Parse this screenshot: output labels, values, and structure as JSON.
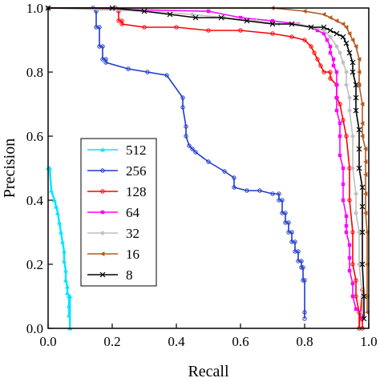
{
  "chart_data": {
    "type": "line",
    "xlabel": "Recall",
    "ylabel": "Precision",
    "xlim": [
      0.0,
      1.0
    ],
    "ylim": [
      0.0,
      1.0
    ],
    "xticks": [
      "0.0",
      "0.2",
      "0.4",
      "0.6",
      "0.8",
      "1.0"
    ],
    "yticks": [
      "0.0",
      "0.2",
      "0.4",
      "0.6",
      "0.8",
      "1.0"
    ],
    "legend_position": "left-center",
    "grid": false,
    "series": [
      {
        "name": "512",
        "color": "#00e5ff",
        "marker": "triangle-up",
        "points": [
          [
            0.0,
            0.5
          ],
          [
            0.005,
            0.5
          ],
          [
            0.01,
            0.43
          ],
          [
            0.02,
            0.4
          ],
          [
            0.025,
            0.38
          ],
          [
            0.03,
            0.36
          ],
          [
            0.035,
            0.33
          ],
          [
            0.04,
            0.3
          ],
          [
            0.045,
            0.27
          ],
          [
            0.05,
            0.24
          ],
          [
            0.05,
            0.21
          ],
          [
            0.055,
            0.18
          ],
          [
            0.055,
            0.15
          ],
          [
            0.06,
            0.13
          ],
          [
            0.06,
            0.11
          ],
          [
            0.065,
            0.1
          ],
          [
            0.065,
            0.07
          ],
          [
            0.065,
            0.04
          ],
          [
            0.068,
            0.1
          ],
          [
            0.068,
            0.0
          ]
        ]
      },
      {
        "name": "256",
        "color": "#1f3bcc",
        "marker": "circle",
        "points": [
          [
            0.0,
            1.0
          ],
          [
            0.14,
            1.0
          ],
          [
            0.15,
            0.99
          ],
          [
            0.15,
            0.94
          ],
          [
            0.16,
            0.94
          ],
          [
            0.16,
            0.88
          ],
          [
            0.17,
            0.88
          ],
          [
            0.17,
            0.84
          ],
          [
            0.18,
            0.84
          ],
          [
            0.18,
            0.83
          ],
          [
            0.25,
            0.81
          ],
          [
            0.31,
            0.8
          ],
          [
            0.37,
            0.79
          ],
          [
            0.42,
            0.72
          ],
          [
            0.42,
            0.69
          ],
          [
            0.43,
            0.63
          ],
          [
            0.43,
            0.6
          ],
          [
            0.44,
            0.57
          ],
          [
            0.45,
            0.56
          ],
          [
            0.46,
            0.55
          ],
          [
            0.5,
            0.52
          ],
          [
            0.55,
            0.49
          ],
          [
            0.58,
            0.47
          ],
          [
            0.58,
            0.44
          ],
          [
            0.62,
            0.43
          ],
          [
            0.66,
            0.43
          ],
          [
            0.7,
            0.42
          ],
          [
            0.72,
            0.42
          ],
          [
            0.72,
            0.4
          ],
          [
            0.73,
            0.4
          ],
          [
            0.73,
            0.36
          ],
          [
            0.74,
            0.36
          ],
          [
            0.74,
            0.33
          ],
          [
            0.75,
            0.33
          ],
          [
            0.75,
            0.3
          ],
          [
            0.76,
            0.3
          ],
          [
            0.76,
            0.27
          ],
          [
            0.77,
            0.27
          ],
          [
            0.77,
            0.24
          ],
          [
            0.78,
            0.24
          ],
          [
            0.78,
            0.21
          ],
          [
            0.79,
            0.21
          ],
          [
            0.79,
            0.19
          ],
          [
            0.795,
            0.19
          ],
          [
            0.795,
            0.15
          ],
          [
            0.8,
            0.15
          ],
          [
            0.8,
            0.05
          ],
          [
            0.8,
            0.03
          ]
        ]
      },
      {
        "name": "128",
        "color": "#ff0000",
        "marker": "circle",
        "points": [
          [
            0.0,
            1.0
          ],
          [
            0.21,
            1.0
          ],
          [
            0.22,
            0.99
          ],
          [
            0.22,
            0.96
          ],
          [
            0.23,
            0.96
          ],
          [
            0.23,
            0.95
          ],
          [
            0.3,
            0.94
          ],
          [
            0.4,
            0.94
          ],
          [
            0.5,
            0.93
          ],
          [
            0.6,
            0.93
          ],
          [
            0.7,
            0.92
          ],
          [
            0.76,
            0.91
          ],
          [
            0.8,
            0.9
          ],
          [
            0.82,
            0.88
          ],
          [
            0.83,
            0.86
          ],
          [
            0.84,
            0.84
          ],
          [
            0.85,
            0.82
          ],
          [
            0.86,
            0.8
          ],
          [
            0.88,
            0.8
          ],
          [
            0.88,
            0.78
          ],
          [
            0.9,
            0.76
          ],
          [
            0.9,
            0.72
          ],
          [
            0.91,
            0.7
          ],
          [
            0.92,
            0.65
          ],
          [
            0.93,
            0.6
          ],
          [
            0.94,
            0.5
          ],
          [
            0.94,
            0.4
          ],
          [
            0.95,
            0.3
          ],
          [
            0.95,
            0.2
          ],
          [
            0.96,
            0.15
          ],
          [
            0.96,
            0.1
          ],
          [
            0.97,
            0.05
          ],
          [
            0.97,
            0.0
          ],
          [
            0.98,
            0.12
          ],
          [
            0.98,
            0.0
          ]
        ]
      },
      {
        "name": "64",
        "color": "#ff00ff",
        "marker": "square",
        "points": [
          [
            0.0,
            1.0
          ],
          [
            0.5,
            0.99
          ],
          [
            0.6,
            0.97
          ],
          [
            0.7,
            0.96
          ],
          [
            0.78,
            0.95
          ],
          [
            0.82,
            0.94
          ],
          [
            0.84,
            0.93
          ],
          [
            0.86,
            0.92
          ],
          [
            0.87,
            0.9
          ],
          [
            0.88,
            0.88
          ],
          [
            0.88,
            0.86
          ],
          [
            0.89,
            0.84
          ],
          [
            0.89,
            0.82
          ],
          [
            0.9,
            0.8
          ],
          [
            0.9,
            0.76
          ],
          [
            0.9,
            0.72
          ],
          [
            0.9,
            0.68
          ],
          [
            0.91,
            0.64
          ],
          [
            0.91,
            0.6
          ],
          [
            0.91,
            0.54
          ],
          [
            0.92,
            0.5
          ],
          [
            0.92,
            0.45
          ],
          [
            0.92,
            0.4
          ],
          [
            0.93,
            0.35
          ],
          [
            0.93,
            0.32
          ],
          [
            0.93,
            0.3
          ],
          [
            0.94,
            0.26
          ],
          [
            0.94,
            0.22
          ],
          [
            0.94,
            0.18
          ],
          [
            0.95,
            0.14
          ],
          [
            0.95,
            0.1
          ],
          [
            0.96,
            0.06
          ],
          [
            0.98,
            0.05
          ],
          [
            0.98,
            0.03
          ]
        ]
      },
      {
        "name": "32",
        "color": "#bfbfbf",
        "marker": "diamond",
        "points": [
          [
            0.0,
            1.0
          ],
          [
            0.3,
            0.99
          ],
          [
            0.45,
            0.98
          ],
          [
            0.55,
            0.97
          ],
          [
            0.65,
            0.96
          ],
          [
            0.72,
            0.95
          ],
          [
            0.78,
            0.95
          ],
          [
            0.82,
            0.94
          ],
          [
            0.86,
            0.93
          ],
          [
            0.88,
            0.91
          ],
          [
            0.9,
            0.88
          ],
          [
            0.91,
            0.86
          ],
          [
            0.92,
            0.83
          ],
          [
            0.93,
            0.8
          ],
          [
            0.93,
            0.76
          ],
          [
            0.94,
            0.72
          ],
          [
            0.94,
            0.68
          ],
          [
            0.95,
            0.6
          ],
          [
            0.95,
            0.5
          ],
          [
            0.96,
            0.42
          ],
          [
            0.96,
            0.36
          ],
          [
            0.97,
            0.3
          ],
          [
            0.97,
            0.2
          ],
          [
            0.98,
            0.1
          ],
          [
            0.98,
            0.05
          ]
        ]
      },
      {
        "name": "16",
        "color": "#b35a1f",
        "marker": "triangle-left",
        "points": [
          [
            0.0,
            1.0
          ],
          [
            0.7,
            1.0
          ],
          [
            0.8,
            0.99
          ],
          [
            0.86,
            0.98
          ],
          [
            0.88,
            0.97
          ],
          [
            0.9,
            0.96
          ],
          [
            0.92,
            0.95
          ],
          [
            0.93,
            0.94
          ],
          [
            0.94,
            0.92
          ],
          [
            0.95,
            0.9
          ],
          [
            0.96,
            0.88
          ],
          [
            0.97,
            0.84
          ],
          [
            0.97,
            0.8
          ],
          [
            0.97,
            0.76
          ],
          [
            0.98,
            0.7
          ],
          [
            0.98,
            0.64
          ],
          [
            0.98,
            0.6
          ],
          [
            0.99,
            0.56
          ],
          [
            0.99,
            0.52
          ],
          [
            0.99,
            0.48
          ],
          [
            0.99,
            0.42
          ],
          [
            0.99,
            0.36
          ],
          [
            0.995,
            0.3
          ],
          [
            0.995,
            0.2
          ],
          [
            0.995,
            0.1
          ],
          [
            0.995,
            0.05
          ]
        ]
      },
      {
        "name": "8",
        "color": "#000000",
        "marker": "x",
        "points": [
          [
            0.0,
            1.0
          ],
          [
            0.2,
            1.0
          ],
          [
            0.3,
            0.99
          ],
          [
            0.38,
            0.98
          ],
          [
            0.46,
            0.97
          ],
          [
            0.54,
            0.97
          ],
          [
            0.62,
            0.96
          ],
          [
            0.7,
            0.95
          ],
          [
            0.76,
            0.95
          ],
          [
            0.82,
            0.94
          ],
          [
            0.86,
            0.94
          ],
          [
            0.88,
            0.93
          ],
          [
            0.9,
            0.92
          ],
          [
            0.92,
            0.91
          ],
          [
            0.93,
            0.89
          ],
          [
            0.94,
            0.86
          ],
          [
            0.95,
            0.83
          ],
          [
            0.95,
            0.8
          ],
          [
            0.96,
            0.76
          ],
          [
            0.96,
            0.72
          ],
          [
            0.96,
            0.68
          ],
          [
            0.97,
            0.62
          ],
          [
            0.97,
            0.56
          ],
          [
            0.97,
            0.5
          ],
          [
            0.98,
            0.44
          ],
          [
            0.98,
            0.38
          ],
          [
            0.98,
            0.3
          ],
          [
            0.98,
            0.2
          ],
          [
            0.985,
            0.1
          ],
          [
            0.985,
            0.03
          ]
        ]
      }
    ]
  }
}
